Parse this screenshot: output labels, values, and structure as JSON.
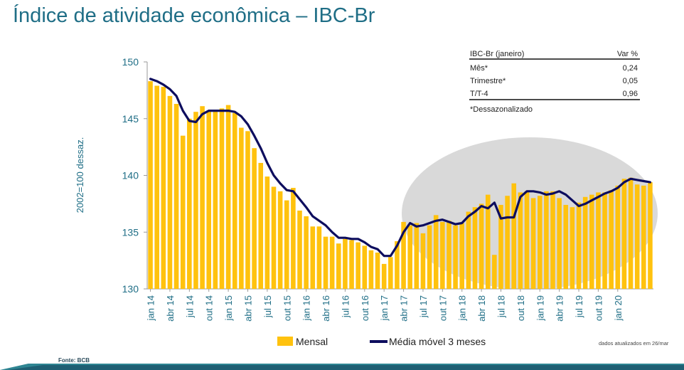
{
  "page": {
    "title": "Índice de atividade econômica – IBC-Br",
    "source": "Fonte: BCB",
    "updated_note": "dados atualizados em 26/mar"
  },
  "colors": {
    "bar": "#FFC20E",
    "line": "#0D0D5E",
    "title": "#1F6E86",
    "ellipse": "#D9D9D9"
  },
  "info_table": {
    "header_label": "IBC-Br (janeiro)",
    "header_value": "Var %",
    "rows": [
      {
        "label": "Mês*",
        "value": "0,24"
      },
      {
        "label": "Trimestre*",
        "value": "0,05"
      },
      {
        "label": "T/T-4",
        "value": "0,96"
      }
    ],
    "footnote": "*Dessazonalizado"
  },
  "chart_data": {
    "type": "bar",
    "ylabel": "2002=100 dessaz.",
    "ylim": [
      130,
      150
    ],
    "yticks": [
      130,
      135,
      140,
      145,
      150
    ],
    "xtick_labels": [
      "jan 14",
      "abr 14",
      "jul 14",
      "out 14",
      "jan 15",
      "abr 15",
      "jul 15",
      "out 15",
      "jan 16",
      "abr 16",
      "jul 16",
      "out 16",
      "jan 17",
      "abr 17",
      "jul 17",
      "out 17",
      "jan 18",
      "abr 18",
      "jul 18",
      "out 18",
      "jan 19",
      "abr 19",
      "jul 19",
      "out 19",
      "jan 20"
    ],
    "legend": {
      "bar": "Mensal",
      "line": "Média móvel 3 meses"
    },
    "series": [
      {
        "name": "Mensal",
        "type": "bar",
        "values": [
          148.3,
          147.9,
          147.8,
          147.0,
          146.3,
          143.5,
          145.0,
          145.6,
          146.1,
          145.7,
          145.7,
          145.9,
          146.2,
          145.5,
          144.2,
          143.9,
          142.4,
          141.1,
          139.9,
          139.0,
          138.6,
          137.8,
          138.9,
          136.9,
          136.4,
          135.5,
          135.5,
          134.6,
          134.6,
          134.0,
          134.4,
          134.3,
          134.1,
          133.8,
          133.4,
          133.2,
          132.2,
          132.8,
          134.2,
          135.9,
          135.6,
          135.8,
          134.9,
          135.6,
          136.5,
          135.9,
          136.0,
          135.6,
          135.8,
          136.8,
          137.2,
          137.5,
          138.3,
          133.0,
          137.4,
          138.2,
          139.3,
          138.5,
          138.6,
          138.0,
          138.2,
          138.6,
          138.6,
          138.0,
          137.4,
          137.2,
          137.6,
          138.1,
          138.3,
          138.5,
          138.5,
          138.7,
          139.1,
          139.7,
          139.8,
          139.2,
          139.1,
          139.4
        ]
      },
      {
        "name": "Média móvel 3 meses",
        "type": "line",
        "values": [
          148.5,
          148.3,
          148.0,
          147.6,
          147.0,
          145.7,
          144.8,
          144.7,
          145.4,
          145.7,
          145.7,
          145.7,
          145.7,
          145.6,
          145.2,
          144.5,
          143.5,
          142.4,
          141.1,
          140.0,
          139.3,
          138.7,
          138.6,
          137.9,
          137.2,
          136.4,
          136.0,
          135.6,
          135.0,
          134.5,
          134.5,
          134.4,
          134.4,
          134.1,
          133.7,
          133.5,
          132.9,
          132.9,
          133.8,
          135.0,
          135.8,
          135.5,
          135.6,
          135.8,
          136.0,
          136.1,
          135.9,
          135.7,
          135.8,
          136.4,
          136.8,
          137.3,
          137.1,
          137.6,
          136.2,
          136.3,
          136.3,
          138.1,
          138.6,
          138.6,
          138.5,
          138.3,
          138.4,
          138.6,
          138.3,
          137.8,
          137.3,
          137.5,
          137.8,
          138.1,
          138.4,
          138.6,
          138.9,
          139.4,
          139.7,
          139.6,
          139.5,
          139.4
        ]
      }
    ]
  }
}
